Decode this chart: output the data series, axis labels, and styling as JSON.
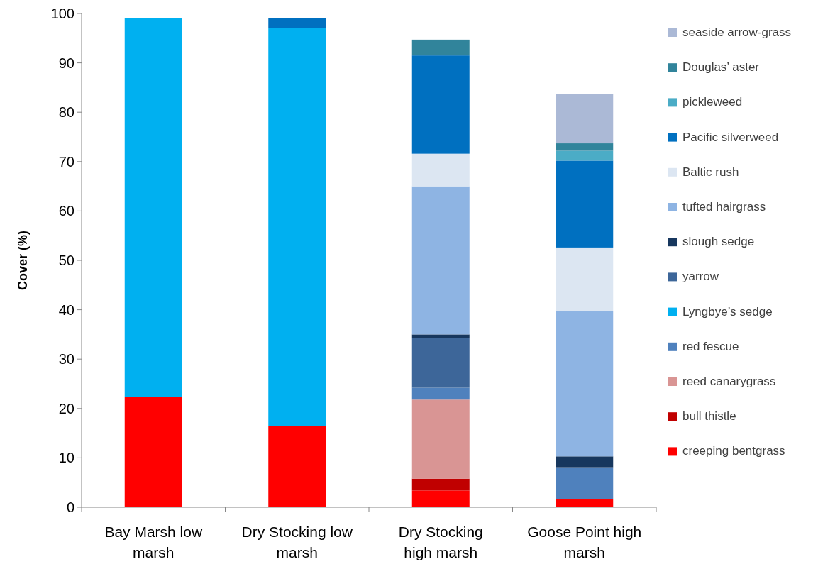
{
  "chart_data": {
    "type": "bar",
    "stacked": true,
    "ylabel": "Cover (%)",
    "categories": [
      "Bay Marsh low marsh",
      "Dry Stocking low marsh",
      "Dry Stocking high marsh",
      "Goose Point high marsh"
    ],
    "series": [
      {
        "name": "creeping bentgrass",
        "color": "#ff0000",
        "values": [
          22.3,
          16.4,
          3.4,
          1.6
        ]
      },
      {
        "name": "bull thistle",
        "color": "#c00000",
        "values": [
          0,
          0,
          2.4,
          0
        ]
      },
      {
        "name": "reed canarygrass",
        "color": "#d99594",
        "values": [
          0,
          0,
          16.0,
          0
        ]
      },
      {
        "name": "red fescue",
        "color": "#4f81bd",
        "values": [
          0,
          0,
          2.4,
          6.5
        ]
      },
      {
        "name": "Lyngbye’s sedge",
        "color": "#00b0f0",
        "values": [
          76.7,
          80.7,
          0,
          0
        ]
      },
      {
        "name": "yarrow",
        "color": "#3d6699",
        "values": [
          0,
          0,
          10.0,
          0
        ]
      },
      {
        "name": "slough sedge",
        "color": "#17375e",
        "values": [
          0,
          0,
          0.8,
          2.2
        ]
      },
      {
        "name": "tufted hairgrass",
        "color": "#8eb4e3",
        "values": [
          0,
          0,
          30.0,
          29.4
        ]
      },
      {
        "name": "Baltic rush",
        "color": "#dce6f2",
        "values": [
          0,
          0,
          6.6,
          12.9
        ]
      },
      {
        "name": "Pacific silverweed",
        "color": "#0070c0",
        "values": [
          0,
          1.9,
          19.9,
          17.6
        ]
      },
      {
        "name": "pickleweed",
        "color": "#4bacc6",
        "values": [
          0,
          0,
          0,
          2.0
        ]
      },
      {
        "name": "Douglas’ aster",
        "color": "#31849b",
        "values": [
          0,
          0,
          3.2,
          1.5
        ]
      },
      {
        "name": "seaside arrow-grass",
        "color": "#abb9d6",
        "values": [
          0,
          0,
          0,
          10.0
        ]
      }
    ],
    "ylim": [
      0,
      100
    ],
    "yticks": [
      0,
      10,
      20,
      30,
      40,
      50,
      60,
      70,
      80,
      90,
      100
    ],
    "grid": false,
    "legend": "right"
  }
}
